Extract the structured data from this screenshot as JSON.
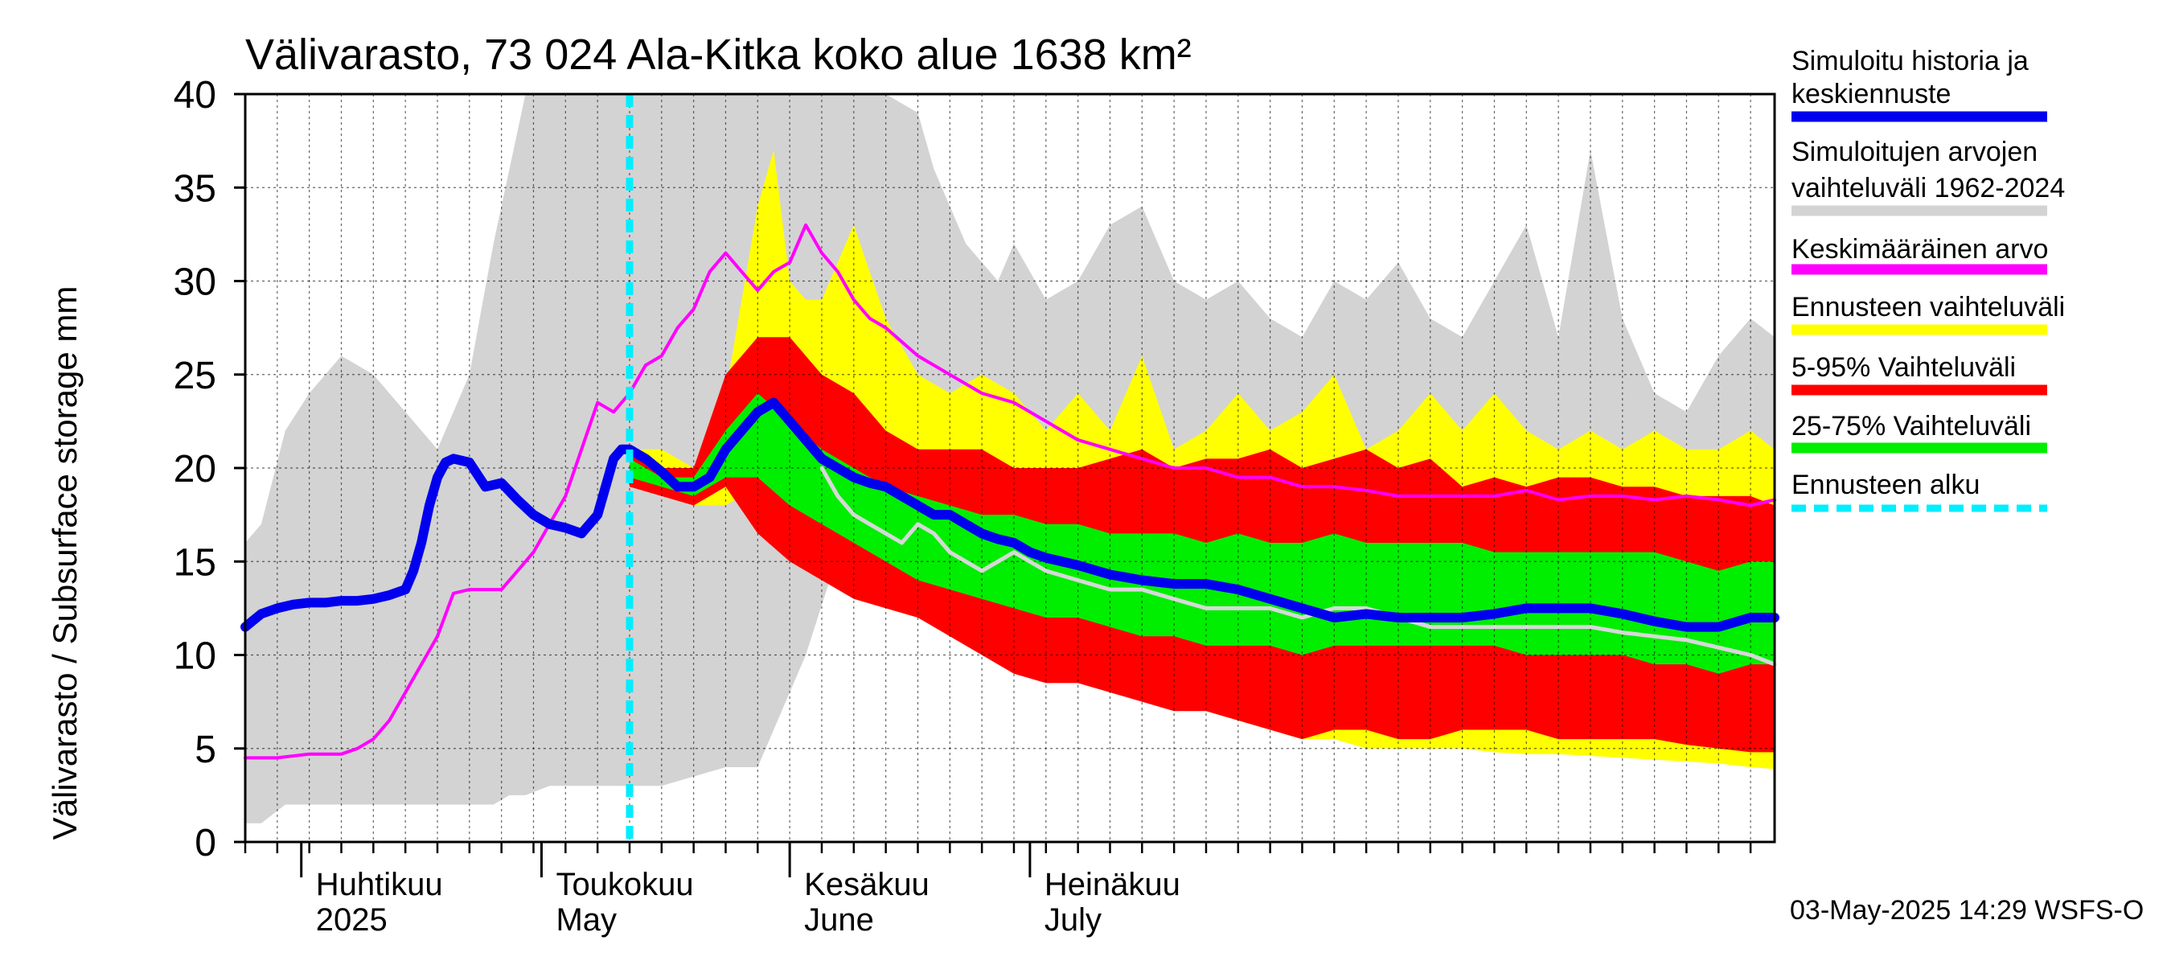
{
  "chart_data": {
    "type": "area",
    "title": "Välivarasto, 73 024 Ala-Kitka koko alue 1638 km²",
    "ylabel": "Välivarasto / Subsurface storage  mm",
    "ylim": [
      0,
      40
    ],
    "yticks": [
      0,
      5,
      10,
      15,
      20,
      25,
      30,
      35,
      40
    ],
    "grid": true,
    "x_unit": "days since 2025-03-25",
    "xlim": [
      0,
      191
    ],
    "forecast_start": 48,
    "months": [
      {
        "line1": "Huhtikuu",
        "line2": "2025",
        "day": 7
      },
      {
        "line1": "Toukokuu",
        "line2": "May",
        "day": 37
      },
      {
        "line1": "Kesäkuu",
        "line2": "June",
        "day": 68
      },
      {
        "line1": "Heinäkuu",
        "line2": "July",
        "day": 98
      }
    ],
    "series": [
      {
        "name": "Simuloitujen arvojen vaihteluväli 1962-2024",
        "kind": "band",
        "color": "#d3d3d3",
        "x": [
          0,
          2,
          5,
          8,
          12,
          16,
          20,
          24,
          28,
          31,
          33,
          35,
          38,
          42,
          46,
          52,
          60,
          64,
          66,
          70,
          73,
          76,
          80,
          84,
          86,
          90,
          94,
          96,
          100,
          104,
          108,
          112,
          114,
          116,
          120,
          124,
          128,
          132,
          136,
          140,
          144,
          148,
          152,
          156,
          160,
          164,
          168,
          172,
          176,
          180,
          184,
          188,
          191
        ],
        "high": [
          16,
          17,
          22,
          24,
          26,
          25,
          23,
          21,
          25,
          32,
          36,
          40,
          40,
          40,
          40,
          40,
          40,
          40,
          40,
          40,
          40,
          40,
          40,
          39,
          36,
          32,
          30,
          32,
          29,
          30,
          33,
          34,
          32,
          30,
          29,
          30,
          28,
          27,
          30,
          29,
          31,
          28,
          27,
          30,
          33,
          27,
          37,
          28,
          24,
          23,
          26,
          28,
          27
        ],
        "low": [
          1,
          1,
          2,
          2,
          2,
          2,
          2,
          2,
          2,
          2,
          2.5,
          2.5,
          3,
          3,
          3,
          3,
          4,
          4,
          6,
          10,
          14,
          18,
          20,
          20,
          20,
          20,
          20,
          20,
          20,
          20,
          20,
          20,
          20,
          20,
          20,
          20,
          20,
          20,
          20,
          20,
          20,
          20,
          20,
          20,
          20,
          20,
          20,
          20,
          20,
          20,
          20,
          20,
          20
        ]
      },
      {
        "name": "Ennusteen vaihteluväli",
        "kind": "band",
        "color": "#ffff00",
        "x": [
          48,
          52,
          56,
          60,
          64,
          66,
          68,
          70,
          72,
          76,
          80,
          84,
          88,
          92,
          96,
          100,
          104,
          108,
          112,
          116,
          120,
          124,
          128,
          132,
          136,
          140,
          144,
          148,
          152,
          156,
          160,
          164,
          168,
          172,
          176,
          180,
          184,
          188,
          191
        ],
        "high": [
          21,
          21,
          20,
          24,
          34,
          37,
          30,
          29,
          29,
          33,
          28,
          25,
          24,
          25,
          24,
          22,
          24,
          22,
          26,
          21,
          22,
          24,
          22,
          23,
          25,
          21,
          22,
          24,
          22,
          24,
          22,
          21,
          22,
          21,
          22,
          21,
          21,
          22,
          21
        ],
        "low": [
          19,
          19,
          18,
          18,
          19,
          18,
          17,
          16,
          15,
          14,
          14,
          13,
          12,
          11,
          10,
          9.5,
          9,
          8.5,
          8,
          7.5,
          7,
          6.5,
          6,
          5.5,
          5.5,
          5,
          5,
          5,
          5,
          4.8,
          4.7,
          4.7,
          4.6,
          4.5,
          4.4,
          4.3,
          4.2,
          4.0,
          3.9
        ]
      },
      {
        "name": "5-95% Vaihteluväli",
        "kind": "band",
        "color": "#ff0000",
        "x": [
          48,
          52,
          56,
          60,
          64,
          68,
          72,
          76,
          80,
          84,
          88,
          92,
          96,
          100,
          104,
          108,
          112,
          116,
          120,
          124,
          128,
          132,
          136,
          140,
          144,
          148,
          152,
          156,
          160,
          164,
          168,
          172,
          176,
          180,
          184,
          188,
          191
        ],
        "high": [
          21,
          20,
          20,
          25,
          27,
          27,
          25,
          24,
          22,
          21,
          21,
          21,
          20,
          20,
          20,
          20.5,
          21,
          20,
          20.5,
          20.5,
          21,
          20,
          20.5,
          21,
          20,
          20.5,
          19,
          19.5,
          19,
          19.5,
          19.5,
          19,
          19,
          18.5,
          18.5,
          18.5,
          18
        ],
        "low": [
          19,
          18.5,
          18,
          19,
          16.5,
          15,
          14,
          13,
          12.5,
          12,
          11,
          10,
          9,
          8.5,
          8.5,
          8,
          7.5,
          7,
          7,
          6.5,
          6,
          5.5,
          6,
          6,
          5.5,
          5.5,
          6,
          6,
          6,
          5.5,
          5.5,
          5.5,
          5.5,
          5.2,
          5,
          4.8,
          4.8
        ]
      },
      {
        "name": "25-75% Vaihteluväli",
        "kind": "band",
        "color": "#00ee00",
        "x": [
          48,
          52,
          56,
          60,
          64,
          68,
          72,
          76,
          80,
          84,
          88,
          92,
          96,
          100,
          104,
          108,
          112,
          116,
          120,
          124,
          128,
          132,
          136,
          140,
          144,
          148,
          152,
          156,
          160,
          164,
          168,
          172,
          176,
          180,
          184,
          188,
          191
        ],
        "high": [
          20.5,
          19.5,
          19.5,
          22,
          24,
          22.5,
          21,
          20,
          19,
          18.5,
          18,
          17.5,
          17.5,
          17,
          17,
          16.5,
          16.5,
          16.5,
          16,
          16.5,
          16,
          16,
          16.5,
          16,
          16,
          16,
          16,
          15.5,
          15.5,
          15.5,
          15.5,
          15.5,
          15.5,
          15,
          14.5,
          15,
          15
        ],
        "low": [
          19.5,
          19,
          18.5,
          19.5,
          19.5,
          18,
          17,
          16,
          15,
          14,
          13.5,
          13,
          12.5,
          12,
          12,
          11.5,
          11,
          11,
          10.5,
          10.5,
          10.5,
          10,
          10.5,
          10.5,
          10.5,
          10.5,
          10.5,
          10.5,
          10,
          10,
          10,
          10,
          9.5,
          9.5,
          9,
          9.5,
          9.5
        ]
      },
      {
        "name": "Keskimääräinen arvo",
        "kind": "line",
        "color": "#ff00ff",
        "width": 4,
        "x": [
          0,
          4,
          8,
          12,
          14,
          16,
          18,
          20,
          22,
          24,
          26,
          28,
          30,
          32,
          34,
          36,
          38,
          40,
          42,
          44,
          46,
          48,
          50,
          52,
          54,
          56,
          58,
          60,
          62,
          64,
          66,
          68,
          70,
          72,
          74,
          76,
          78,
          80,
          84,
          88,
          92,
          96,
          100,
          104,
          108,
          112,
          116,
          120,
          124,
          128,
          132,
          136,
          140,
          144,
          148,
          152,
          156,
          160,
          164,
          168,
          172,
          176,
          180,
          184,
          188,
          191
        ],
        "y": [
          4.5,
          4.5,
          4.7,
          4.7,
          5.0,
          5.5,
          6.5,
          8.0,
          9.5,
          11.0,
          13.3,
          13.5,
          13.5,
          13.5,
          14.5,
          15.5,
          17.0,
          18.5,
          21.0,
          23.5,
          23.0,
          24.0,
          25.5,
          26.0,
          27.5,
          28.5,
          30.5,
          31.5,
          30.5,
          29.5,
          30.5,
          31.0,
          33.0,
          31.5,
          30.5,
          29.0,
          28.0,
          27.5,
          26.0,
          25.0,
          24.0,
          23.5,
          22.5,
          21.5,
          21.0,
          20.5,
          20.0,
          20.0,
          19.5,
          19.5,
          19.0,
          19.0,
          18.8,
          18.5,
          18.5,
          18.5,
          18.5,
          18.8,
          18.3,
          18.5,
          18.5,
          18.3,
          18.5,
          18.3,
          18.0,
          18.3
        ]
      },
      {
        "name": "Median (forecast)",
        "kind": "line",
        "color": "#d8d8d8",
        "width": 5,
        "x": [
          72,
          74,
          76,
          78,
          80,
          82,
          84,
          86,
          88,
          90,
          92,
          94,
          96,
          98,
          100,
          104,
          108,
          112,
          116,
          120,
          124,
          128,
          132,
          136,
          140,
          144,
          148,
          152,
          156,
          160,
          164,
          168,
          172,
          176,
          180,
          184,
          188,
          191
        ],
        "y": [
          20.0,
          18.5,
          17.5,
          17.0,
          16.5,
          16.0,
          17.0,
          16.5,
          15.5,
          15.0,
          14.5,
          15.0,
          15.5,
          15.0,
          14.5,
          14.0,
          13.5,
          13.5,
          13.0,
          12.5,
          12.5,
          12.5,
          12.0,
          12.5,
          12.5,
          12.0,
          11.5,
          11.5,
          11.5,
          11.5,
          11.5,
          11.5,
          11.2,
          11.0,
          10.8,
          10.4,
          10.0,
          9.5
        ]
      },
      {
        "name": "Simuloitu historia ja keskiennuste",
        "kind": "line",
        "color": "#0000ee",
        "width": 12,
        "x": [
          0,
          2,
          4,
          6,
          8,
          10,
          12,
          14,
          16,
          18,
          20,
          21,
          22,
          23,
          24,
          25,
          26,
          28,
          30,
          32,
          34,
          36,
          38,
          40,
          42,
          44,
          45,
          46,
          47,
          48,
          50,
          52,
          54,
          56,
          58,
          60,
          62,
          64,
          66,
          68,
          70,
          72,
          74,
          76,
          78,
          80,
          82,
          84,
          86,
          88,
          90,
          92,
          94,
          96,
          98,
          100,
          104,
          108,
          112,
          116,
          120,
          124,
          128,
          132,
          136,
          140,
          144,
          148,
          152,
          156,
          160,
          164,
          168,
          172,
          176,
          180,
          184,
          188,
          191
        ],
        "y": [
          11.5,
          12.2,
          12.5,
          12.7,
          12.8,
          12.8,
          12.9,
          12.9,
          13.0,
          13.2,
          13.5,
          14.5,
          16.0,
          18.0,
          19.5,
          20.3,
          20.5,
          20.3,
          19.0,
          19.2,
          18.3,
          17.5,
          17.0,
          16.8,
          16.5,
          17.5,
          19.0,
          20.5,
          21.0,
          21.0,
          20.5,
          19.8,
          19.0,
          19.0,
          19.5,
          21.0,
          22.0,
          23.0,
          23.5,
          22.5,
          21.5,
          20.5,
          20.0,
          19.5,
          19.2,
          19.0,
          18.5,
          18.0,
          17.5,
          17.5,
          17.0,
          16.5,
          16.2,
          16.0,
          15.5,
          15.2,
          14.8,
          14.3,
          14.0,
          13.8,
          13.8,
          13.5,
          13.0,
          12.5,
          12.0,
          12.2,
          12.0,
          12.0,
          12.0,
          12.2,
          12.5,
          12.5,
          12.5,
          12.2,
          11.8,
          11.5,
          11.5,
          12.0,
          12.0
        ]
      }
    ],
    "legend": {
      "placement": "right",
      "items": [
        {
          "line1": "Simuloitu historia ja",
          "line2": "keskiennuste",
          "color": "#0000ee",
          "style": "solid"
        },
        {
          "line1": "Simuloitujen arvojen",
          "line2": "vaihteluväli 1962-2024",
          "color": "#d3d3d3",
          "style": "solid"
        },
        {
          "line1": "Keskimääräinen arvo",
          "line2": "",
          "color": "#ff00ff",
          "style": "solid"
        },
        {
          "line1": "Ennusteen vaihteluväli",
          "line2": "",
          "color": "#ffff00",
          "style": "solid"
        },
        {
          "line1": "5-95% Vaihteluväli",
          "line2": "",
          "color": "#ff0000",
          "style": "solid"
        },
        {
          "line1": "25-75% Vaihteluväli",
          "line2": "",
          "color": "#00ee00",
          "style": "solid"
        },
        {
          "line1": "Ennusteen alku",
          "line2": "",
          "color": "#00eeff",
          "style": "dashed"
        }
      ]
    },
    "footer": "03-May-2025 14:29 WSFS-O"
  }
}
